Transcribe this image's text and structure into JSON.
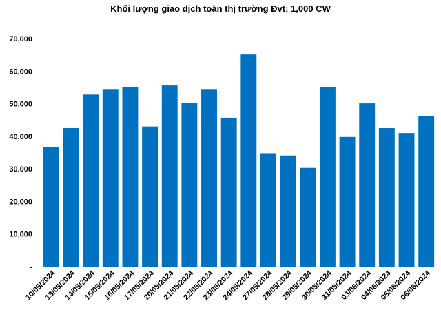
{
  "chart_data": {
    "type": "bar",
    "title": "Khối lượng giao dịch toàn thị trường Đvt: 1,000 CW",
    "xlabel": "",
    "ylabel": "",
    "ylim": [
      0,
      70000
    ],
    "yticks": [
      {
        "value": 0,
        "label": "-"
      },
      {
        "value": 10000,
        "label": "10,000"
      },
      {
        "value": 20000,
        "label": "20,000"
      },
      {
        "value": 30000,
        "label": "30,000"
      },
      {
        "value": 40000,
        "label": "40,000"
      },
      {
        "value": 50000,
        "label": "50,000"
      },
      {
        "value": 60000,
        "label": "60,000"
      },
      {
        "value": 70000,
        "label": "70,000"
      }
    ],
    "grid": false,
    "legend": "none",
    "bar_color": "#0070C0",
    "categories": [
      "10/05/2024",
      "13/05/2024",
      "14/05/2024",
      "15/05/2024",
      "16/05/2024",
      "17/05/2024",
      "20/05/2024",
      "21/05/2024",
      "22/05/2024",
      "23/05/2024",
      "24/05/2024",
      "27/05/2024",
      "28/05/2024",
      "29/05/2024",
      "30/05/2024",
      "31/05/2024",
      "03/06/2024",
      "04/06/2024",
      "05/06/2024",
      "06/06/2024"
    ],
    "values": [
      36800,
      42500,
      52800,
      54500,
      55000,
      43000,
      55600,
      50300,
      54500,
      45700,
      65100,
      34800,
      34100,
      30300,
      55000,
      39800,
      50100,
      42500,
      41000,
      46300
    ]
  }
}
